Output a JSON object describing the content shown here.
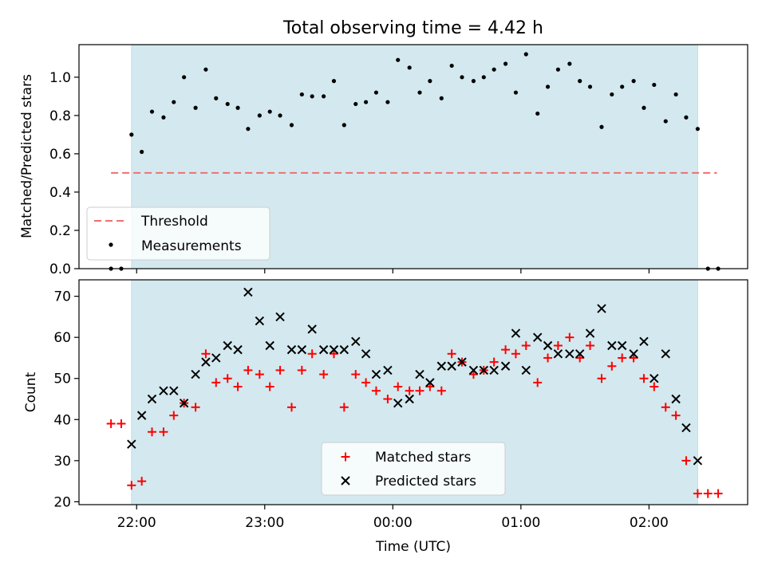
{
  "title": "Total observing time = 4.42 h",
  "colors": {
    "shade": "#d3e9ef",
    "threshold": "#f07070",
    "measurement": "#000000",
    "matched": "#ff0000",
    "predicted": "#000000"
  },
  "chart_data": [
    {
      "type": "scatter",
      "panel": "top",
      "ylabel": "Matched/Predicted stars",
      "xlabel": "",
      "ylim": [
        0,
        1.17
      ],
      "yticks": [
        0.0,
        0.2,
        0.4,
        0.6,
        0.8,
        1.0
      ],
      "ytick_labels": [
        "0.0",
        "0.2",
        "0.4",
        "0.6",
        "0.8",
        "1.0"
      ],
      "x_unit": "hours since 00:00 UTC",
      "xlim": [
        -2.45,
        2.77
      ],
      "observing_window": [
        -2.04,
        2.38
      ],
      "legend": {
        "placement": "lower-left",
        "entries": [
          "Threshold",
          "Measurements"
        ]
      },
      "threshold": {
        "name": "Threshold",
        "value": 0.5,
        "x_range": [
          -2.2,
          2.53
        ]
      },
      "series": [
        {
          "name": "Measurements",
          "points": [
            [
              -2.2,
              0.0
            ],
            [
              -2.12,
              0.0
            ],
            [
              -2.04,
              0.7
            ],
            [
              -1.96,
              0.61
            ],
            [
              -1.88,
              0.82
            ],
            [
              -1.79,
              0.79
            ],
            [
              -1.71,
              0.87
            ],
            [
              -1.63,
              1.0
            ],
            [
              -1.54,
              0.84
            ],
            [
              -1.46,
              1.04
            ],
            [
              -1.38,
              0.89
            ],
            [
              -1.29,
              0.86
            ],
            [
              -1.21,
              0.84
            ],
            [
              -1.13,
              0.73
            ],
            [
              -1.04,
              0.8
            ],
            [
              -0.96,
              0.82
            ],
            [
              -0.88,
              0.8
            ],
            [
              -0.79,
              0.75
            ],
            [
              -0.71,
              0.91
            ],
            [
              -0.63,
              0.9
            ],
            [
              -0.54,
              0.9
            ],
            [
              -0.46,
              0.98
            ],
            [
              -0.38,
              0.75
            ],
            [
              -0.29,
              0.86
            ],
            [
              -0.21,
              0.87
            ],
            [
              -0.13,
              0.92
            ],
            [
              -0.04,
              0.87
            ],
            [
              0.04,
              1.09
            ],
            [
              0.13,
              1.05
            ],
            [
              0.21,
              0.92
            ],
            [
              0.29,
              0.98
            ],
            [
              0.38,
              0.89
            ],
            [
              0.46,
              1.06
            ],
            [
              0.54,
              1.0
            ],
            [
              0.63,
              0.98
            ],
            [
              0.71,
              1.0
            ],
            [
              0.79,
              1.04
            ],
            [
              0.88,
              1.07
            ],
            [
              0.96,
              0.92
            ],
            [
              1.04,
              1.12
            ],
            [
              1.13,
              0.81
            ],
            [
              1.21,
              0.95
            ],
            [
              1.29,
              1.04
            ],
            [
              1.38,
              1.07
            ],
            [
              1.46,
              0.98
            ],
            [
              1.54,
              0.95
            ],
            [
              1.63,
              0.74
            ],
            [
              1.71,
              0.91
            ],
            [
              1.79,
              0.95
            ],
            [
              1.88,
              0.98
            ],
            [
              1.96,
              0.84
            ],
            [
              2.04,
              0.96
            ],
            [
              2.13,
              0.77
            ],
            [
              2.21,
              0.91
            ],
            [
              2.29,
              0.79
            ],
            [
              2.38,
              0.73
            ],
            [
              2.46,
              0.0
            ],
            [
              2.54,
              0.0
            ]
          ]
        }
      ]
    },
    {
      "type": "scatter",
      "panel": "bottom",
      "ylabel": "Count",
      "xlabel": "Time (UTC)",
      "ylim": [
        19.3,
        74.0
      ],
      "yticks": [
        20,
        30,
        40,
        50,
        60,
        70
      ],
      "ytick_labels": [
        "20",
        "30",
        "40",
        "50",
        "60",
        "70"
      ],
      "x_unit": "hours since 00:00 UTC",
      "xlim": [
        -2.45,
        2.77
      ],
      "xticks": [
        -2,
        -1,
        0,
        1,
        2
      ],
      "xtick_labels": [
        "22:00",
        "23:00",
        "00:00",
        "01:00",
        "02:00"
      ],
      "observing_window": [
        -2.04,
        2.38
      ],
      "legend": {
        "placement": "lower-center",
        "entries": [
          "Matched stars",
          "Predicted stars"
        ]
      },
      "series": [
        {
          "name": "Matched stars",
          "marker": "plus",
          "points": [
            [
              -2.2,
              39
            ],
            [
              -2.12,
              39
            ],
            [
              -2.04,
              24
            ],
            [
              -1.96,
              25
            ],
            [
              -1.88,
              37
            ],
            [
              -1.79,
              37
            ],
            [
              -1.71,
              41
            ],
            [
              -1.63,
              44
            ],
            [
              -1.54,
              43
            ],
            [
              -1.46,
              56
            ],
            [
              -1.38,
              49
            ],
            [
              -1.29,
              50
            ],
            [
              -1.21,
              48
            ],
            [
              -1.13,
              52
            ],
            [
              -1.04,
              51
            ],
            [
              -0.96,
              48
            ],
            [
              -0.88,
              52
            ],
            [
              -0.79,
              43
            ],
            [
              -0.71,
              52
            ],
            [
              -0.63,
              56
            ],
            [
              -0.54,
              51
            ],
            [
              -0.46,
              56
            ],
            [
              -0.38,
              43
            ],
            [
              -0.29,
              51
            ],
            [
              -0.21,
              49
            ],
            [
              -0.13,
              47
            ],
            [
              -0.04,
              45
            ],
            [
              0.04,
              48
            ],
            [
              0.13,
              47
            ],
            [
              0.21,
              47
            ],
            [
              0.29,
              48
            ],
            [
              0.38,
              47
            ],
            [
              0.46,
              56
            ],
            [
              0.54,
              54
            ],
            [
              0.63,
              51
            ],
            [
              0.71,
              52
            ],
            [
              0.79,
              54
            ],
            [
              0.88,
              57
            ],
            [
              0.96,
              56
            ],
            [
              1.04,
              58
            ],
            [
              1.13,
              49
            ],
            [
              1.21,
              55
            ],
            [
              1.29,
              58
            ],
            [
              1.38,
              60
            ],
            [
              1.46,
              55
            ],
            [
              1.54,
              58
            ],
            [
              1.63,
              50
            ],
            [
              1.71,
              53
            ],
            [
              1.79,
              55
            ],
            [
              1.88,
              55
            ],
            [
              1.96,
              50
            ],
            [
              2.04,
              48
            ],
            [
              2.13,
              43
            ],
            [
              2.21,
              41
            ],
            [
              2.29,
              30
            ],
            [
              2.38,
              22
            ],
            [
              2.46,
              22
            ],
            [
              2.54,
              22
            ]
          ]
        },
        {
          "name": "Predicted stars",
          "marker": "x",
          "points": [
            [
              -2.04,
              34
            ],
            [
              -1.96,
              41
            ],
            [
              -1.88,
              45
            ],
            [
              -1.79,
              47
            ],
            [
              -1.71,
              47
            ],
            [
              -1.63,
              44
            ],
            [
              -1.54,
              51
            ],
            [
              -1.46,
              54
            ],
            [
              -1.38,
              55
            ],
            [
              -1.29,
              58
            ],
            [
              -1.21,
              57
            ],
            [
              -1.13,
              71
            ],
            [
              -1.04,
              64
            ],
            [
              -0.96,
              58
            ],
            [
              -0.88,
              65
            ],
            [
              -0.79,
              57
            ],
            [
              -0.71,
              57
            ],
            [
              -0.63,
              62
            ],
            [
              -0.54,
              57
            ],
            [
              -0.46,
              57
            ],
            [
              -0.38,
              57
            ],
            [
              -0.29,
              59
            ],
            [
              -0.21,
              56
            ],
            [
              -0.13,
              51
            ],
            [
              -0.04,
              52
            ],
            [
              0.04,
              44
            ],
            [
              0.13,
              45
            ],
            [
              0.21,
              51
            ],
            [
              0.29,
              49
            ],
            [
              0.38,
              53
            ],
            [
              0.46,
              53
            ],
            [
              0.54,
              54
            ],
            [
              0.63,
              52
            ],
            [
              0.71,
              52
            ],
            [
              0.79,
              52
            ],
            [
              0.88,
              53
            ],
            [
              0.96,
              61
            ],
            [
              1.04,
              52
            ],
            [
              1.13,
              60
            ],
            [
              1.21,
              58
            ],
            [
              1.29,
              56
            ],
            [
              1.38,
              56
            ],
            [
              1.46,
              56
            ],
            [
              1.54,
              61
            ],
            [
              1.63,
              67
            ],
            [
              1.71,
              58
            ],
            [
              1.79,
              58
            ],
            [
              1.88,
              56
            ],
            [
              1.96,
              59
            ],
            [
              2.04,
              50
            ],
            [
              2.13,
              56
            ],
            [
              2.21,
              45
            ],
            [
              2.29,
              38
            ],
            [
              2.38,
              30
            ]
          ]
        }
      ]
    }
  ]
}
